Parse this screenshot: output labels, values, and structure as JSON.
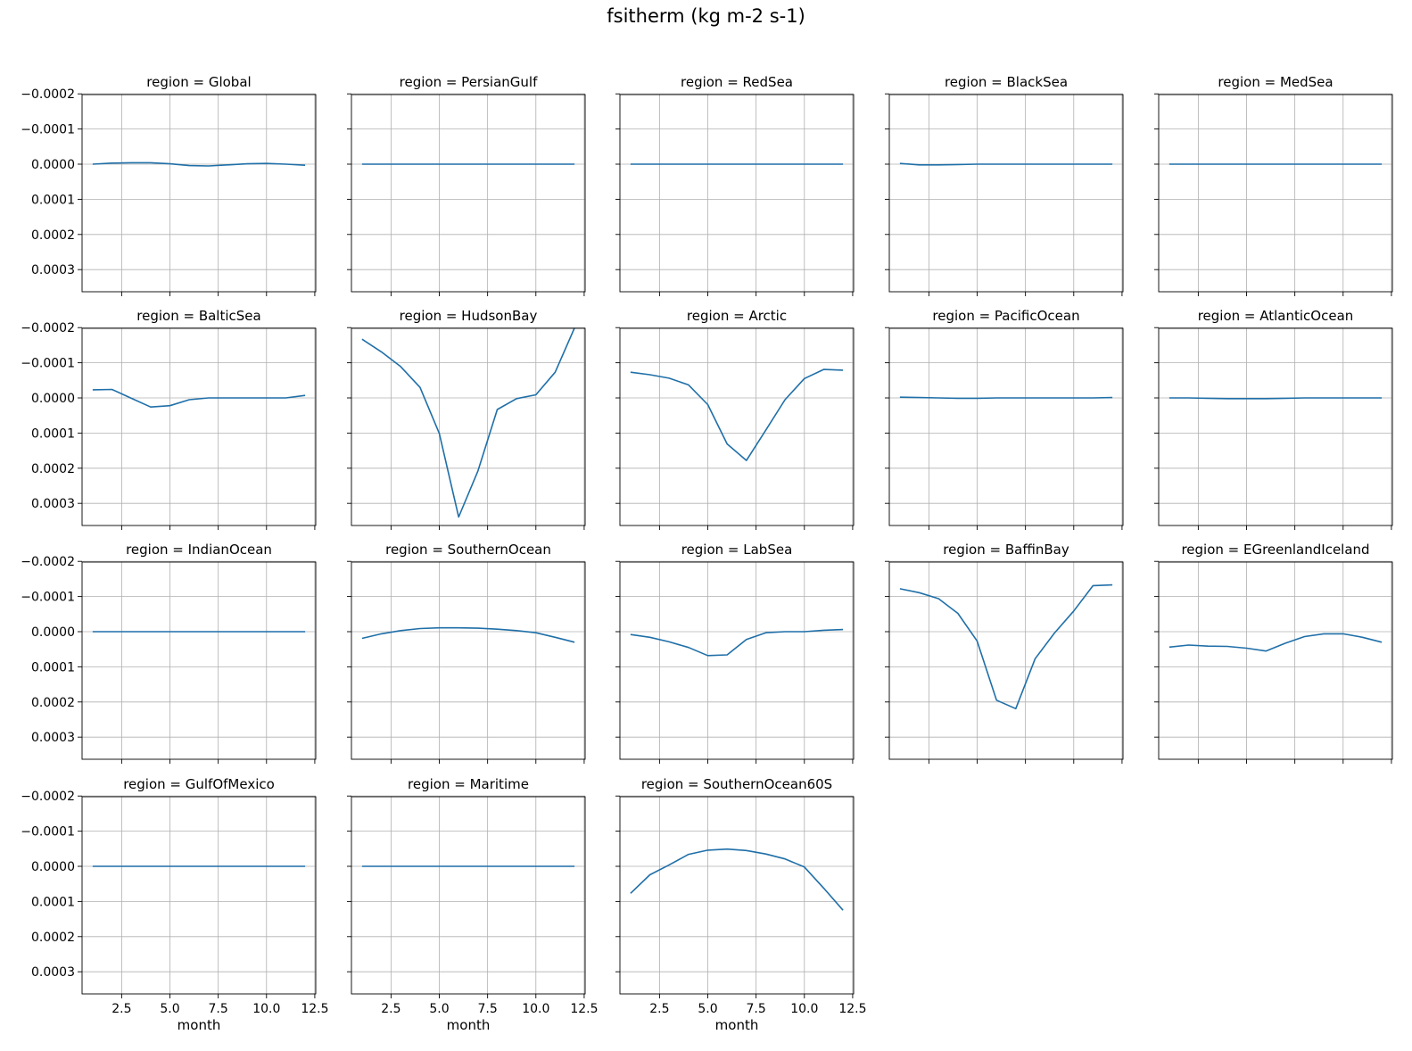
{
  "figure": {
    "title": "fsitherm (kg m-2 s-1)"
  },
  "chart_data": {
    "type": "line",
    "title": "fsitherm (kg m-2 s-1)",
    "xlabel": "month",
    "ylabel": "",
    "xlim": [
      0.45,
      12.55
    ],
    "ylim": [
      0.000363,
      -0.000198
    ],
    "y_inverted": true,
    "xticks": [
      2.5,
      5.0,
      7.5,
      10.0,
      12.5
    ],
    "xtick_labels": [
      "2.5",
      "5.0",
      "7.5",
      "10.0",
      "12.5"
    ],
    "yticks": [
      -0.0002,
      -0.0001,
      0.0,
      0.0001,
      0.0002,
      0.0003
    ],
    "ytick_labels": [
      "−0.0002",
      "−0.0001",
      "0.0000",
      "0.0001",
      "0.0002",
      "0.0003"
    ],
    "grid": true,
    "line_color": "#1f6fa8",
    "x": [
      1,
      2,
      3,
      4,
      5,
      6,
      7,
      8,
      9,
      10,
      11,
      12
    ],
    "panels": [
      {
        "title": "region = Global",
        "values": [
          0.0,
          -3e-06,
          -4e-06,
          -4e-06,
          -1e-06,
          4e-06,
          5e-06,
          2e-06,
          -1e-06,
          -2e-06,
          0.0,
          3e-06
        ]
      },
      {
        "title": "region = PersianGulf",
        "values": [
          0,
          0,
          0,
          0,
          0,
          0,
          0,
          0,
          0,
          0,
          0,
          0
        ]
      },
      {
        "title": "region = RedSea",
        "values": [
          0,
          0,
          0,
          0,
          0,
          0,
          0,
          0,
          0,
          0,
          0,
          0
        ]
      },
      {
        "title": "region = BlackSea",
        "values": [
          -2e-06,
          2e-06,
          2e-06,
          1e-06,
          0,
          0,
          0,
          0,
          0,
          0,
          0,
          0
        ]
      },
      {
        "title": "region = MedSea",
        "values": [
          0,
          0,
          0,
          0,
          0,
          0,
          0,
          0,
          0,
          0,
          0,
          0
        ]
      },
      {
        "title": "region = BalticSea",
        "values": [
          -2.3e-05,
          -2.4e-05,
          1e-06,
          2.6e-05,
          2.2e-05,
          5e-06,
          0.0,
          0.0,
          0.0,
          0.0,
          0.0,
          -7e-06
        ]
      },
      {
        "title": "region = HudsonBay",
        "values": [
          -0.000167,
          -0.000131,
          -8.9e-05,
          -3e-05,
          0.000101,
          0.000339,
          0.000208,
          3.3e-05,
          2e-06,
          -9e-06,
          -7.3e-05,
          -0.000199
        ]
      },
      {
        "title": "region = Arctic",
        "values": [
          -7.3e-05,
          -6.6e-05,
          -5.6e-05,
          -3.7e-05,
          1.9e-05,
          0.000131,
          0.000178,
          9.2e-05,
          5e-06,
          -5.5e-05,
          -8.1e-05,
          -7.9e-05
        ]
      },
      {
        "title": "region = PacificOcean",
        "values": [
          -2e-06,
          -1e-06,
          0.0,
          1e-06,
          1e-06,
          0.0,
          0.0,
          0.0,
          0.0,
          0.0,
          0.0,
          -1e-06
        ]
      },
      {
        "title": "region = AtlanticOcean",
        "values": [
          0.0,
          0.0,
          1e-06,
          2e-06,
          2e-06,
          2e-06,
          1e-06,
          0.0,
          0.0,
          0.0,
          0.0,
          0.0
        ]
      },
      {
        "title": "region = IndianOcean",
        "values": [
          0,
          0,
          0,
          0,
          0,
          0,
          0,
          0,
          0,
          0,
          0,
          0
        ]
      },
      {
        "title": "region = SouthernOcean",
        "values": [
          1.9e-05,
          6e-06,
          -3e-06,
          -9e-06,
          -1.1e-05,
          -1.1e-05,
          -1e-05,
          -7e-06,
          -3e-06,
          3e-06,
          1.6e-05,
          3e-05
        ]
      },
      {
        "title": "region = LabSea",
        "values": [
          8e-06,
          1.6e-05,
          2.9e-05,
          4.5e-05,
          6.8e-05,
          6.6e-05,
          2.2e-05,
          3e-06,
          0.0,
          0.0,
          -4e-06,
          -6e-06
        ]
      },
      {
        "title": "region = BaffinBay",
        "values": [
          -0.000122,
          -0.000111,
          -9.4e-05,
          -5.2e-05,
          2.7e-05,
          0.000195,
          0.000219,
          7.7e-05,
          4e-06,
          -5.9e-05,
          -0.000131,
          -0.000133
        ]
      },
      {
        "title": "region = EGreenlandIceland",
        "values": [
          4.4e-05,
          3.8e-05,
          4.1e-05,
          4.2e-05,
          4.7e-05,
          5.5e-05,
          3.3e-05,
          1.4e-05,
          6e-06,
          6e-06,
          1.6e-05,
          3e-05
        ]
      },
      {
        "title": "region = GulfOfMexico",
        "values": [
          0,
          0,
          0,
          0,
          0,
          0,
          0,
          0,
          0,
          0,
          0,
          0
        ]
      },
      {
        "title": "region = Maritime",
        "values": [
          0,
          0,
          0,
          0,
          0,
          0,
          0,
          0,
          0,
          0,
          0,
          0
        ]
      },
      {
        "title": "region = SouthernOcean60S",
        "values": [
          7.7e-05,
          2.4e-05,
          -4e-06,
          -3.4e-05,
          -4.6e-05,
          -4.9e-05,
          -4.5e-05,
          -3.5e-05,
          -2.1e-05,
          2e-06,
          6.2e-05,
          0.000125
        ]
      }
    ]
  }
}
